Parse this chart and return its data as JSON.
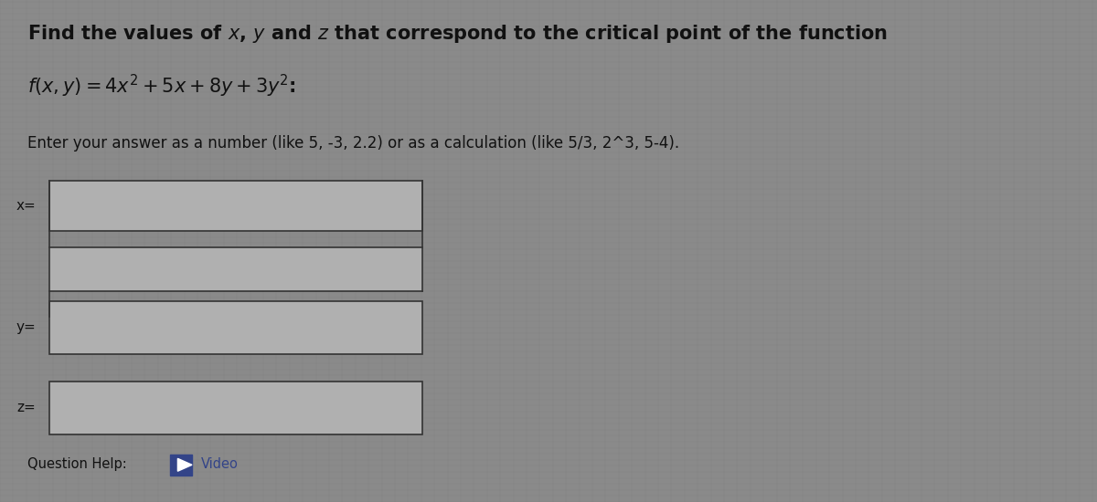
{
  "background_color": "#8a8a8a",
  "grid_color": "#999999",
  "title_line1": "Find the values of $x$, $y$ and $z$ that correspond to the critical point of the function",
  "title_line2": "$f(x, y) = 4x^2 + 5x + 8y + 3y^2$:",
  "instruction": "Enter your answer as a number (like 5, -3, 2.2) or as a calculation (like 5/3, 2^3, 5-4).",
  "question_help_text": "Question Help:",
  "text_color": "#111111",
  "box_fill": "#b0b0b0",
  "box_edge": "#333333",
  "font_size_title": 15,
  "font_size_instruction": 12,
  "font_size_labels": 11,
  "font_size_help": 10.5,
  "video_color": "#334488",
  "video_icon_color": "#334488"
}
